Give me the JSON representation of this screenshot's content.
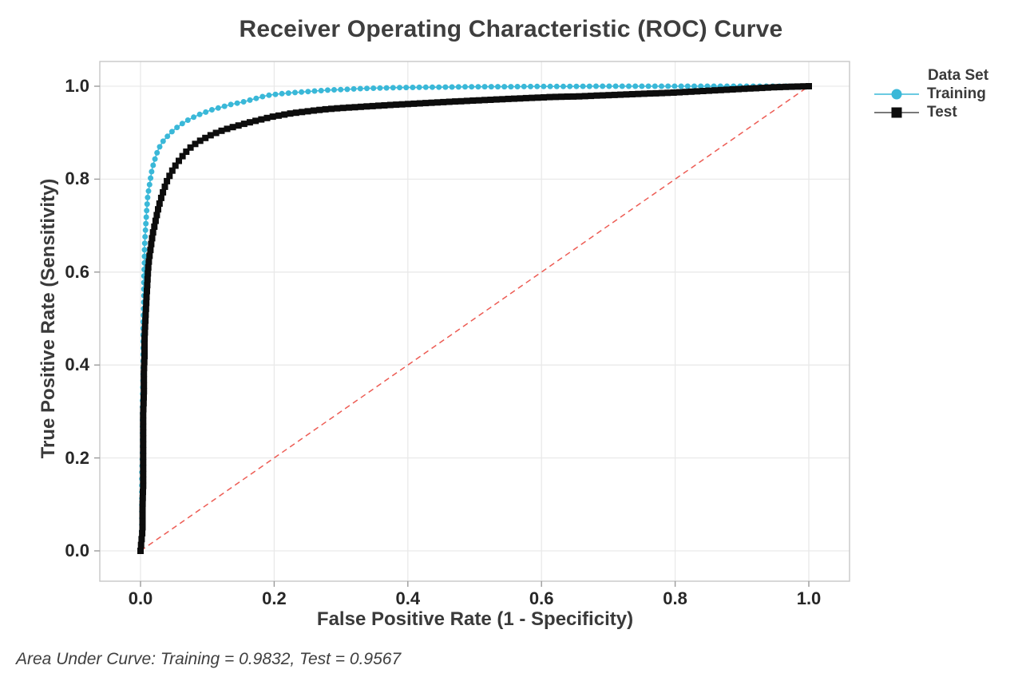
{
  "title": "Receiver Operating Characteristic (ROC) Curve",
  "footer": "Area Under Curve: Training = 0.9832, Test = 0.9567",
  "colors": {
    "training": "#3ab8d8",
    "test": "#0d0d0d",
    "reference": "#ed5c54",
    "grid": "#e9e9e9",
    "plot_border": "#c7c7c7",
    "tick": "#9b9b9b",
    "text": "#3a3a3a"
  },
  "legend": {
    "title": "Data Set",
    "items": [
      {
        "label": "Training",
        "marker": "circle",
        "color": "#3ab8d8",
        "line_color": "#3ab8d8"
      },
      {
        "label": "Test",
        "marker": "square",
        "color": "#0d0d0d",
        "line_color": "#4d4d4d"
      }
    ]
  },
  "chart_data": {
    "type": "line",
    "title": "Receiver Operating Characteristic (ROC) Curve",
    "xlabel": "False Positive Rate (1 - Specificity)",
    "ylabel": "True Positive Rate (Sensitivity)",
    "xlim": [
      -0.06,
      1.06
    ],
    "ylim": [
      -0.065,
      1.06
    ],
    "grid": true,
    "legend_position": "right",
    "x_ticks": [
      0.0,
      0.2,
      0.4,
      0.6,
      0.8,
      1.0
    ],
    "y_ticks": [
      0.0,
      0.2,
      0.4,
      0.6,
      0.8,
      1.0
    ],
    "x_tick_labels": [
      "0.0",
      "0.2",
      "0.4",
      "0.6",
      "0.8",
      "1.0"
    ],
    "y_tick_labels": [
      "0.0",
      "0.2",
      "0.4",
      "0.6",
      "0.8",
      "1.0"
    ],
    "auc": {
      "Training": 0.9832,
      "Test": 0.9567
    },
    "reference_line": {
      "name": "chance-diagonal",
      "from": [
        0,
        0
      ],
      "to": [
        1,
        1
      ],
      "color": "#ed5c54",
      "style": "dashed"
    },
    "series": [
      {
        "name": "Training",
        "color": "#3ab8d8",
        "marker": "circle",
        "points": [
          [
            0.0,
            0.0
          ],
          [
            0.002,
            0.05
          ],
          [
            0.002,
            0.105
          ],
          [
            0.002,
            0.16
          ],
          [
            0.003,
            0.215
          ],
          [
            0.003,
            0.27
          ],
          [
            0.003,
            0.325
          ],
          [
            0.004,
            0.38
          ],
          [
            0.004,
            0.435
          ],
          [
            0.004,
            0.49
          ],
          [
            0.005,
            0.54
          ],
          [
            0.005,
            0.585
          ],
          [
            0.006,
            0.625
          ],
          [
            0.006,
            0.655
          ],
          [
            0.007,
            0.68
          ],
          [
            0.008,
            0.705
          ],
          [
            0.009,
            0.728
          ],
          [
            0.01,
            0.748
          ],
          [
            0.011,
            0.766
          ],
          [
            0.013,
            0.784
          ],
          [
            0.015,
            0.802
          ],
          [
            0.017,
            0.82
          ],
          [
            0.02,
            0.836
          ],
          [
            0.023,
            0.85
          ],
          [
            0.026,
            0.862
          ],
          [
            0.03,
            0.873
          ],
          [
            0.034,
            0.882
          ],
          [
            0.039,
            0.89
          ],
          [
            0.044,
            0.898
          ],
          [
            0.05,
            0.906
          ],
          [
            0.056,
            0.913
          ],
          [
            0.063,
            0.92
          ],
          [
            0.071,
            0.927
          ],
          [
            0.079,
            0.933
          ],
          [
            0.088,
            0.939
          ],
          [
            0.097,
            0.944
          ],
          [
            0.106,
            0.949
          ],
          [
            0.116,
            0.953
          ],
          [
            0.126,
            0.957
          ],
          [
            0.136,
            0.961
          ],
          [
            0.146,
            0.964
          ],
          [
            0.156,
            0.967
          ],
          [
            0.166,
            0.971
          ],
          [
            0.176,
            0.975
          ],
          [
            0.186,
            0.979
          ],
          [
            0.198,
            0.982
          ],
          [
            0.212,
            0.984
          ],
          [
            0.228,
            0.986
          ],
          [
            0.246,
            0.988
          ],
          [
            0.264,
            0.99
          ],
          [
            0.284,
            0.992
          ],
          [
            0.306,
            0.993
          ],
          [
            0.33,
            0.995
          ],
          [
            0.356,
            0.996
          ],
          [
            0.384,
            0.997
          ],
          [
            0.414,
            0.9975
          ],
          [
            0.446,
            0.998
          ],
          [
            0.48,
            0.9985
          ],
          [
            0.516,
            0.999
          ],
          [
            0.554,
            0.999
          ],
          [
            0.594,
            0.9995
          ],
          [
            0.636,
            0.9995
          ],
          [
            0.68,
            1.0
          ],
          [
            0.726,
            1.0
          ],
          [
            0.774,
            1.0
          ],
          [
            0.824,
            1.0
          ],
          [
            0.876,
            1.0
          ],
          [
            0.93,
            1.0
          ],
          [
            1.0,
            1.0
          ]
        ]
      },
      {
        "name": "Test",
        "color": "#0d0d0d",
        "marker": "square",
        "points": [
          [
            0.0,
            0.0
          ],
          [
            0.003,
            0.045
          ],
          [
            0.003,
            0.095
          ],
          [
            0.004,
            0.145
          ],
          [
            0.004,
            0.195
          ],
          [
            0.004,
            0.245
          ],
          [
            0.004,
            0.295
          ],
          [
            0.005,
            0.34
          ],
          [
            0.005,
            0.382
          ],
          [
            0.006,
            0.42
          ],
          [
            0.006,
            0.455
          ],
          [
            0.007,
            0.488
          ],
          [
            0.008,
            0.518
          ],
          [
            0.009,
            0.546
          ],
          [
            0.01,
            0.572
          ],
          [
            0.011,
            0.596
          ],
          [
            0.012,
            0.618
          ],
          [
            0.014,
            0.64
          ],
          [
            0.016,
            0.66
          ],
          [
            0.018,
            0.68
          ],
          [
            0.021,
            0.7
          ],
          [
            0.024,
            0.72
          ],
          [
            0.027,
            0.74
          ],
          [
            0.031,
            0.76
          ],
          [
            0.035,
            0.778
          ],
          [
            0.039,
            0.794
          ],
          [
            0.044,
            0.809
          ],
          [
            0.049,
            0.822
          ],
          [
            0.055,
            0.835
          ],
          [
            0.062,
            0.848
          ],
          [
            0.069,
            0.86
          ],
          [
            0.077,
            0.871
          ],
          [
            0.086,
            0.88
          ],
          [
            0.096,
            0.888
          ],
          [
            0.107,
            0.896
          ],
          [
            0.119,
            0.903
          ],
          [
            0.131,
            0.909
          ],
          [
            0.143,
            0.914
          ],
          [
            0.155,
            0.919
          ],
          [
            0.168,
            0.924
          ],
          [
            0.182,
            0.929
          ],
          [
            0.196,
            0.934
          ],
          [
            0.211,
            0.938
          ],
          [
            0.227,
            0.942
          ],
          [
            0.244,
            0.945
          ],
          [
            0.262,
            0.948
          ],
          [
            0.281,
            0.951
          ],
          [
            0.301,
            0.953
          ],
          [
            0.322,
            0.955
          ],
          [
            0.344,
            0.957
          ],
          [
            0.367,
            0.959
          ],
          [
            0.391,
            0.961
          ],
          [
            0.416,
            0.963
          ],
          [
            0.442,
            0.965
          ],
          [
            0.469,
            0.967
          ],
          [
            0.497,
            0.969
          ],
          [
            0.526,
            0.971
          ],
          [
            0.556,
            0.973
          ],
          [
            0.587,
            0.975
          ],
          [
            0.619,
            0.977
          ],
          [
            0.652,
            0.978
          ],
          [
            0.686,
            0.98
          ],
          [
            0.721,
            0.982
          ],
          [
            0.757,
            0.984
          ],
          [
            0.794,
            0.986
          ],
          [
            0.832,
            0.989
          ],
          [
            0.871,
            0.992
          ],
          [
            0.911,
            0.995
          ],
          [
            0.952,
            0.998
          ],
          [
            1.0,
            1.0
          ]
        ]
      }
    ]
  }
}
